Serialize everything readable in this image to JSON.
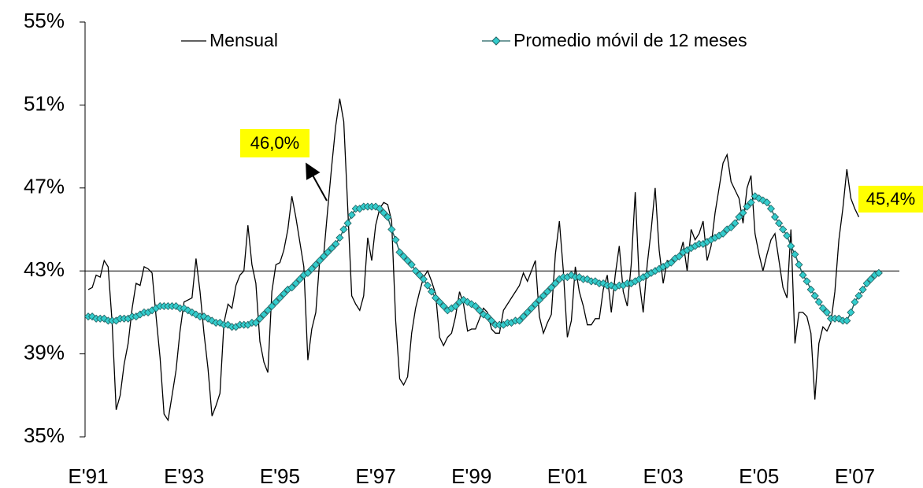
{
  "chart_data": {
    "type": "line",
    "categories": [
      "E'91",
      null,
      null,
      null,
      null,
      null,
      null,
      null,
      null,
      null,
      null,
      null,
      null,
      null,
      null,
      null,
      null,
      null,
      null,
      null,
      null,
      null,
      null,
      null,
      "E'93",
      null,
      null,
      null,
      null,
      null,
      null,
      null,
      null,
      null,
      null,
      null,
      null,
      null,
      null,
      null,
      null,
      null,
      null,
      null,
      null,
      null,
      null,
      null,
      "E'95",
      null,
      null,
      null,
      null,
      null,
      null,
      null,
      null,
      null,
      null,
      null,
      null,
      null,
      null,
      null,
      null,
      null,
      null,
      null,
      null,
      null,
      null,
      null,
      "E'97",
      null,
      null,
      null,
      null,
      null,
      null,
      null,
      null,
      null,
      null,
      null,
      null,
      null,
      null,
      null,
      null,
      null,
      null,
      null,
      null,
      null,
      null,
      null,
      "E'99",
      null,
      null,
      null,
      null,
      null,
      null,
      null,
      null,
      null,
      null,
      null,
      null,
      null,
      null,
      null,
      null,
      null,
      null,
      null,
      null,
      null,
      null,
      null,
      "E'01",
      null,
      null,
      null,
      null,
      null,
      null,
      null,
      null,
      null,
      null,
      null,
      null,
      null,
      null,
      null,
      null,
      null,
      null,
      null,
      null,
      null,
      null,
      null,
      "E'03",
      null,
      null,
      null,
      null,
      null,
      null,
      null,
      null,
      null,
      null,
      null,
      null,
      null,
      null,
      null,
      null,
      null,
      null,
      null,
      null,
      null,
      null,
      null,
      "E'05",
      null,
      null,
      null,
      null,
      null,
      null,
      null,
      null,
      null,
      null,
      null,
      null,
      null,
      null,
      null,
      null,
      null,
      null,
      null,
      null,
      null,
      null,
      null,
      "E'07",
      null,
      null,
      null,
      null,
      null,
      null
    ],
    "series": [
      {
        "name": "Mensual",
        "color": "#000000",
        "marker": "none",
        "values": [
          42.1,
          42.2,
          42.8,
          42.7,
          43.5,
          43.2,
          40.5,
          36.3,
          37.0,
          38.5,
          39.5,
          41.2,
          42.4,
          42.3,
          43.2,
          43.1,
          42.9,
          40.8,
          38.8,
          36.1,
          35.8,
          37.0,
          38.2,
          40.1,
          41.5,
          41.6,
          41.7,
          43.6,
          42.0,
          40.0,
          38.3,
          36.0,
          36.5,
          37.1,
          40.5,
          41.4,
          41.2,
          42.3,
          42.8,
          43.0,
          45.2,
          43.3,
          42.4,
          39.6,
          38.6,
          38.1,
          42.0,
          43.3,
          43.4,
          44.0,
          45.0,
          46.6,
          45.6,
          44.4,
          43.2,
          38.7,
          40.2,
          41.0,
          43.6,
          43.8,
          46.0,
          48.1,
          50.0,
          51.3,
          50.2,
          46.0,
          41.8,
          41.4,
          41.1,
          41.8,
          44.6,
          43.5,
          45.2,
          46.0,
          46.3,
          46.2,
          45.4,
          40.6,
          37.8,
          37.5,
          37.9,
          40.0,
          41.2,
          42.0,
          42.7,
          43.0,
          42.5,
          41.9,
          39.8,
          39.4,
          39.8,
          40.0,
          40.8,
          42.0,
          41.4,
          40.1,
          40.2,
          40.2,
          40.7,
          41.2,
          41.0,
          40.2,
          40.0,
          40.0,
          41.1,
          41.4,
          41.7,
          42.0,
          42.3,
          42.9,
          42.5,
          43.0,
          43.5,
          40.8,
          40.0,
          40.5,
          40.9,
          43.8,
          45.4,
          43.0,
          39.8,
          40.6,
          43.2,
          42.0,
          41.3,
          40.4,
          40.4,
          40.7,
          40.7,
          42.1,
          42.8,
          41.0,
          42.8,
          44.2,
          42.0,
          41.3,
          43.3,
          46.8,
          42.5,
          41.0,
          43.3,
          45.0,
          47.0,
          44.0,
          42.4,
          43.5,
          43.4,
          43.5,
          43.7,
          44.4,
          43.0,
          45.0,
          44.5,
          44.8,
          45.4,
          43.5,
          44.2,
          45.8,
          47.0,
          48.2,
          48.6,
          47.3,
          46.9,
          46.5,
          45.3,
          47.0,
          47.6,
          44.8,
          43.8,
          43.0,
          43.8,
          44.5,
          44.8,
          43.5,
          42.2,
          41.7,
          45.0,
          39.5,
          41.0,
          41.0,
          40.8,
          40.0,
          36.8,
          39.5,
          40.3,
          40.1,
          40.5,
          42.0,
          44.5,
          46.0,
          47.9,
          46.5,
          46.0,
          45.6,
          null,
          null,
          null,
          null,
          null
        ]
      },
      {
        "name": "Promedio móvil de 12 meses",
        "color": "#33cccc",
        "marker": "diamond",
        "marker_edge": "#1f5f5f",
        "values": [
          40.8,
          40.8,
          40.7,
          40.7,
          40.7,
          40.6,
          40.6,
          40.6,
          40.7,
          40.7,
          40.7,
          40.8,
          40.8,
          40.9,
          41.0,
          41.0,
          41.1,
          41.2,
          41.3,
          41.3,
          41.3,
          41.3,
          41.3,
          41.2,
          41.2,
          41.1,
          41.0,
          40.9,
          40.8,
          40.8,
          40.7,
          40.6,
          40.5,
          40.5,
          40.4,
          40.4,
          40.3,
          40.3,
          40.4,
          40.4,
          40.4,
          40.5,
          40.5,
          40.7,
          40.9,
          41.1,
          41.3,
          41.5,
          41.7,
          41.9,
          42.1,
          42.2,
          42.4,
          42.6,
          42.8,
          42.9,
          43.1,
          43.3,
          43.5,
          43.7,
          43.9,
          44.1,
          44.3,
          44.6,
          45.0,
          45.3,
          45.7,
          46.0,
          46.0,
          46.1,
          46.1,
          46.1,
          46.1,
          46.0,
          45.8,
          45.6,
          45.0,
          44.5,
          43.9,
          43.7,
          43.5,
          43.3,
          43.0,
          42.8,
          42.6,
          42.3,
          42.0,
          41.7,
          41.5,
          41.3,
          41.1,
          41.2,
          41.3,
          41.5,
          41.6,
          41.5,
          41.4,
          41.3,
          41.1,
          40.9,
          40.8,
          40.6,
          40.4,
          40.4,
          40.4,
          40.5,
          40.5,
          40.6,
          40.6,
          40.8,
          41.0,
          41.2,
          41.4,
          41.6,
          41.8,
          42.0,
          42.2,
          42.4,
          42.6,
          42.7,
          42.7,
          42.8,
          42.7,
          42.7,
          42.6,
          42.6,
          42.5,
          42.5,
          42.4,
          42.4,
          42.3,
          42.3,
          42.2,
          42.3,
          42.3,
          42.4,
          42.4,
          42.5,
          42.6,
          42.7,
          42.8,
          42.9,
          43.0,
          43.1,
          43.2,
          43.3,
          43.4,
          43.6,
          43.7,
          43.9,
          44.0,
          44.1,
          44.2,
          44.3,
          44.3,
          44.4,
          44.5,
          44.6,
          44.7,
          44.8,
          45.0,
          45.1,
          45.3,
          45.6,
          45.8,
          46.1,
          46.3,
          46.6,
          46.5,
          46.4,
          46.3,
          46.0,
          45.6,
          45.3,
          45.0,
          44.7,
          44.2,
          43.8,
          43.3,
          42.8,
          42.5,
          42.1,
          41.8,
          41.5,
          41.2,
          41.0,
          40.7,
          40.7,
          40.7,
          40.6,
          40.6,
          41.0,
          41.5,
          41.8,
          42.1,
          42.4,
          42.6,
          42.8,
          42.9
        ]
      }
    ],
    "ylim": [
      35,
      55
    ],
    "yticks": [
      {
        "value": 35,
        "label": "35%"
      },
      {
        "value": 39,
        "label": "39%"
      },
      {
        "value": 43,
        "label": "43%"
      },
      {
        "value": 47,
        "label": "47%"
      },
      {
        "value": 51,
        "label": "51%"
      },
      {
        "value": 55,
        "label": "55%"
      }
    ],
    "x_axis_crosses_at": 43,
    "grid": false,
    "legend": "top",
    "annotations": [
      {
        "text": "46,0%",
        "color": "#ffff00"
      },
      {
        "text": "45,4%",
        "color": "#ffff00"
      }
    ]
  }
}
